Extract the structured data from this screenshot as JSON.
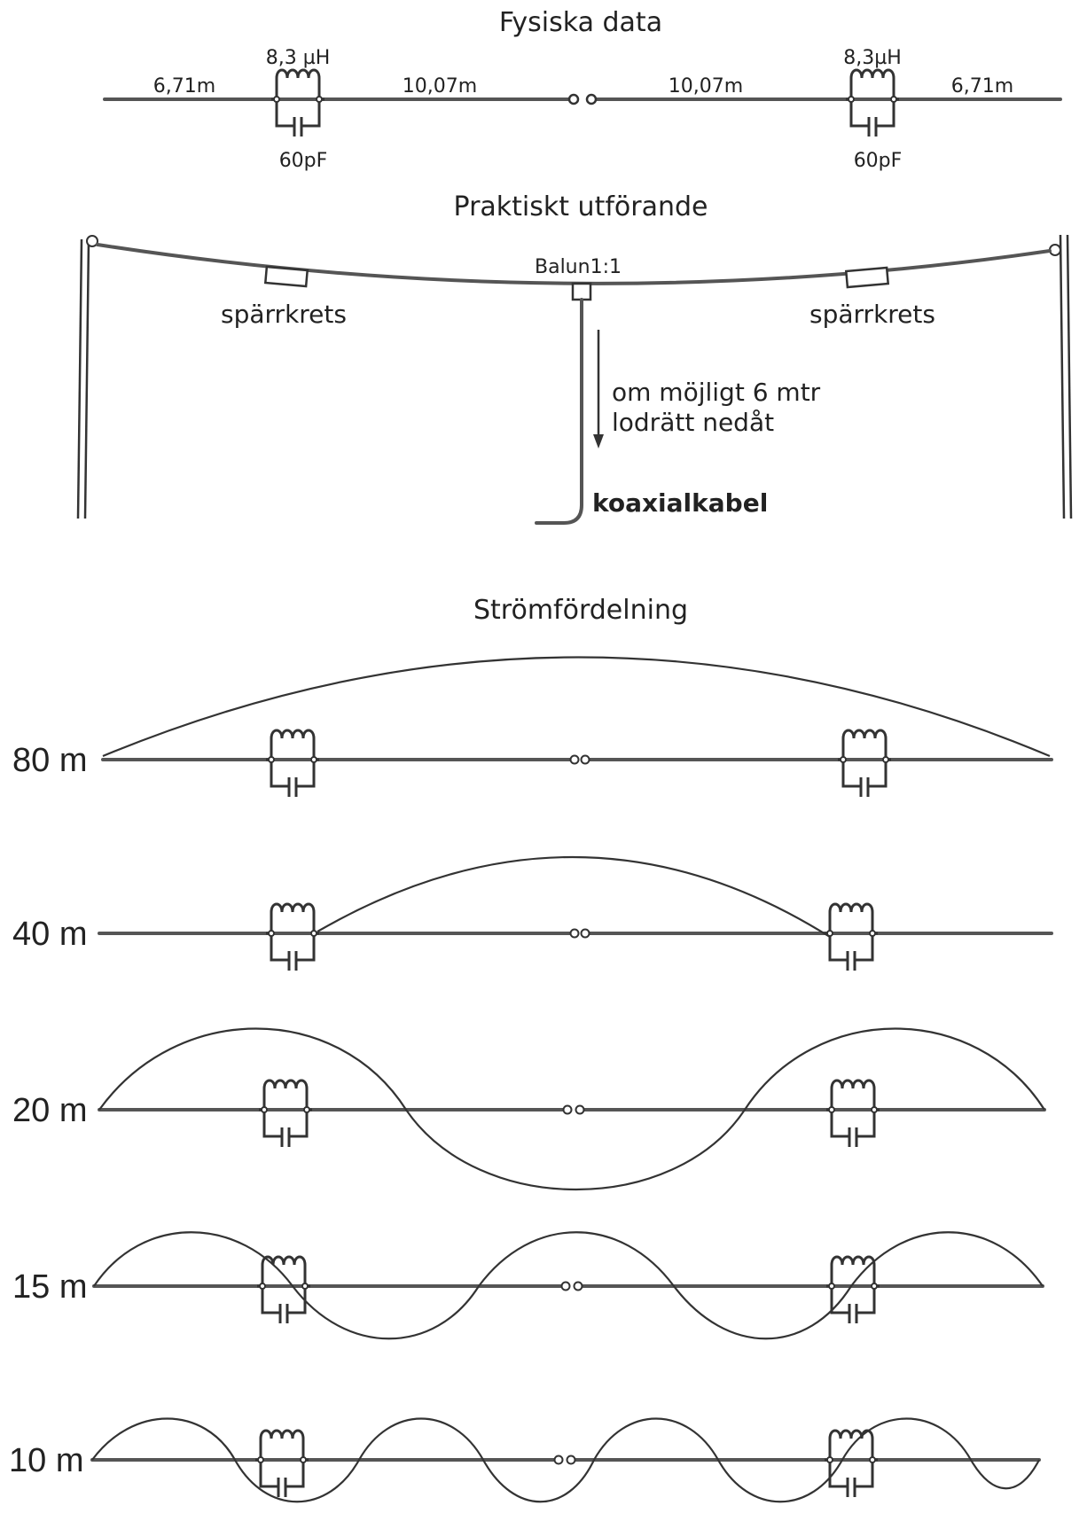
{
  "sections": {
    "physical": {
      "title": "Fysiska data",
      "inductance_left": "8,3 µH",
      "inductance_right": "8,3µH",
      "capacitance_left": "60pF",
      "capacitance_right": "60pF",
      "outer_len_left": "6,71m",
      "inner_len_left": "10,07m",
      "inner_len_right": "10,07m",
      "outer_len_right": "6,71m"
    },
    "practical": {
      "title": "Praktiskt utförande",
      "balun": "Balun1:1",
      "trap_left": "spärrkrets",
      "trap_right": "spärrkrets",
      "note_line1": "om möjligt 6 mtr",
      "note_line2": "lodrätt nedåt",
      "cable": "koaxialkabel"
    },
    "current": {
      "title": "Strömfördelning",
      "bands": [
        {
          "label": "80 m",
          "shape": "single-arc"
        },
        {
          "label": "40 m",
          "shape": "inner-arc"
        },
        {
          "label": "20 m",
          "shape": "sine-2"
        },
        {
          "label": "15 m",
          "shape": "sine-3"
        },
        {
          "label": "10 m",
          "shape": "sine-4"
        }
      ]
    }
  }
}
